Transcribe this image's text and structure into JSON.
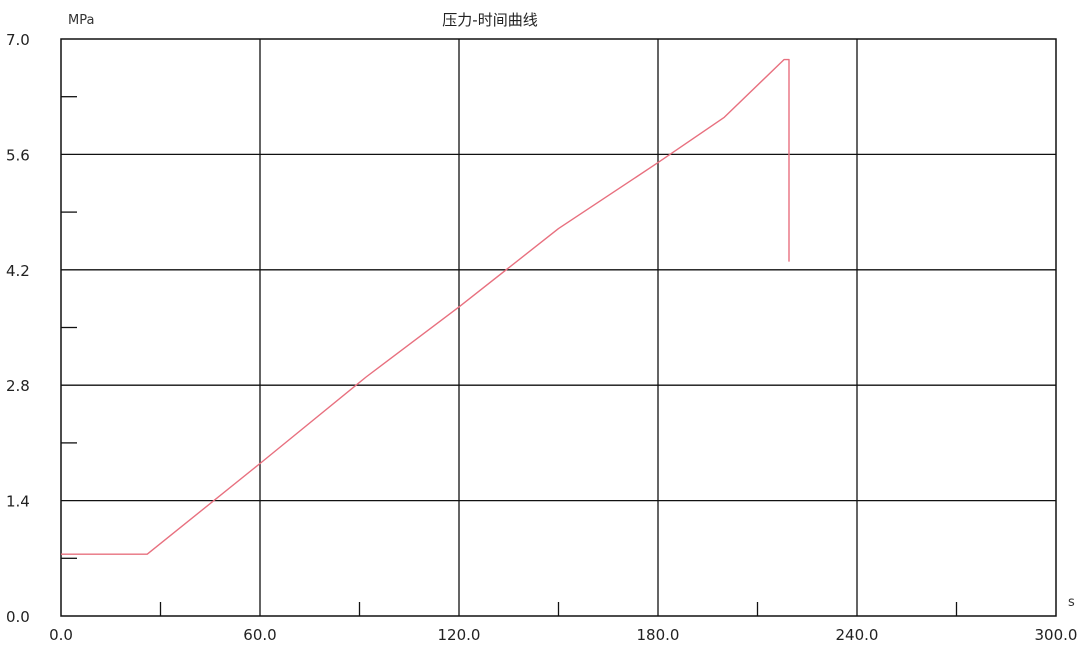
{
  "chart_data": {
    "type": "line",
    "title": "压力-时间曲线",
    "y_unit": "MPa",
    "x_unit": "s",
    "xlim": [
      0,
      300
    ],
    "ylim": [
      0,
      7
    ],
    "x_ticks": [
      "0.0",
      "60.0",
      "120.0",
      "180.0",
      "240.0",
      "300.0"
    ],
    "y_ticks": [
      "0.0",
      "1.4",
      "2.8",
      "4.2",
      "5.6",
      "7.0"
    ],
    "grid": true,
    "line_color": "#e8707f",
    "series": [
      {
        "x": [
          0,
          26,
          60,
          92,
          120,
          150,
          180,
          200,
          218,
          219.5,
          219.5
        ],
        "y": [
          0.75,
          0.75,
          1.85,
          2.9,
          3.75,
          4.7,
          5.5,
          6.05,
          6.75,
          6.75,
          4.3
        ]
      }
    ]
  }
}
